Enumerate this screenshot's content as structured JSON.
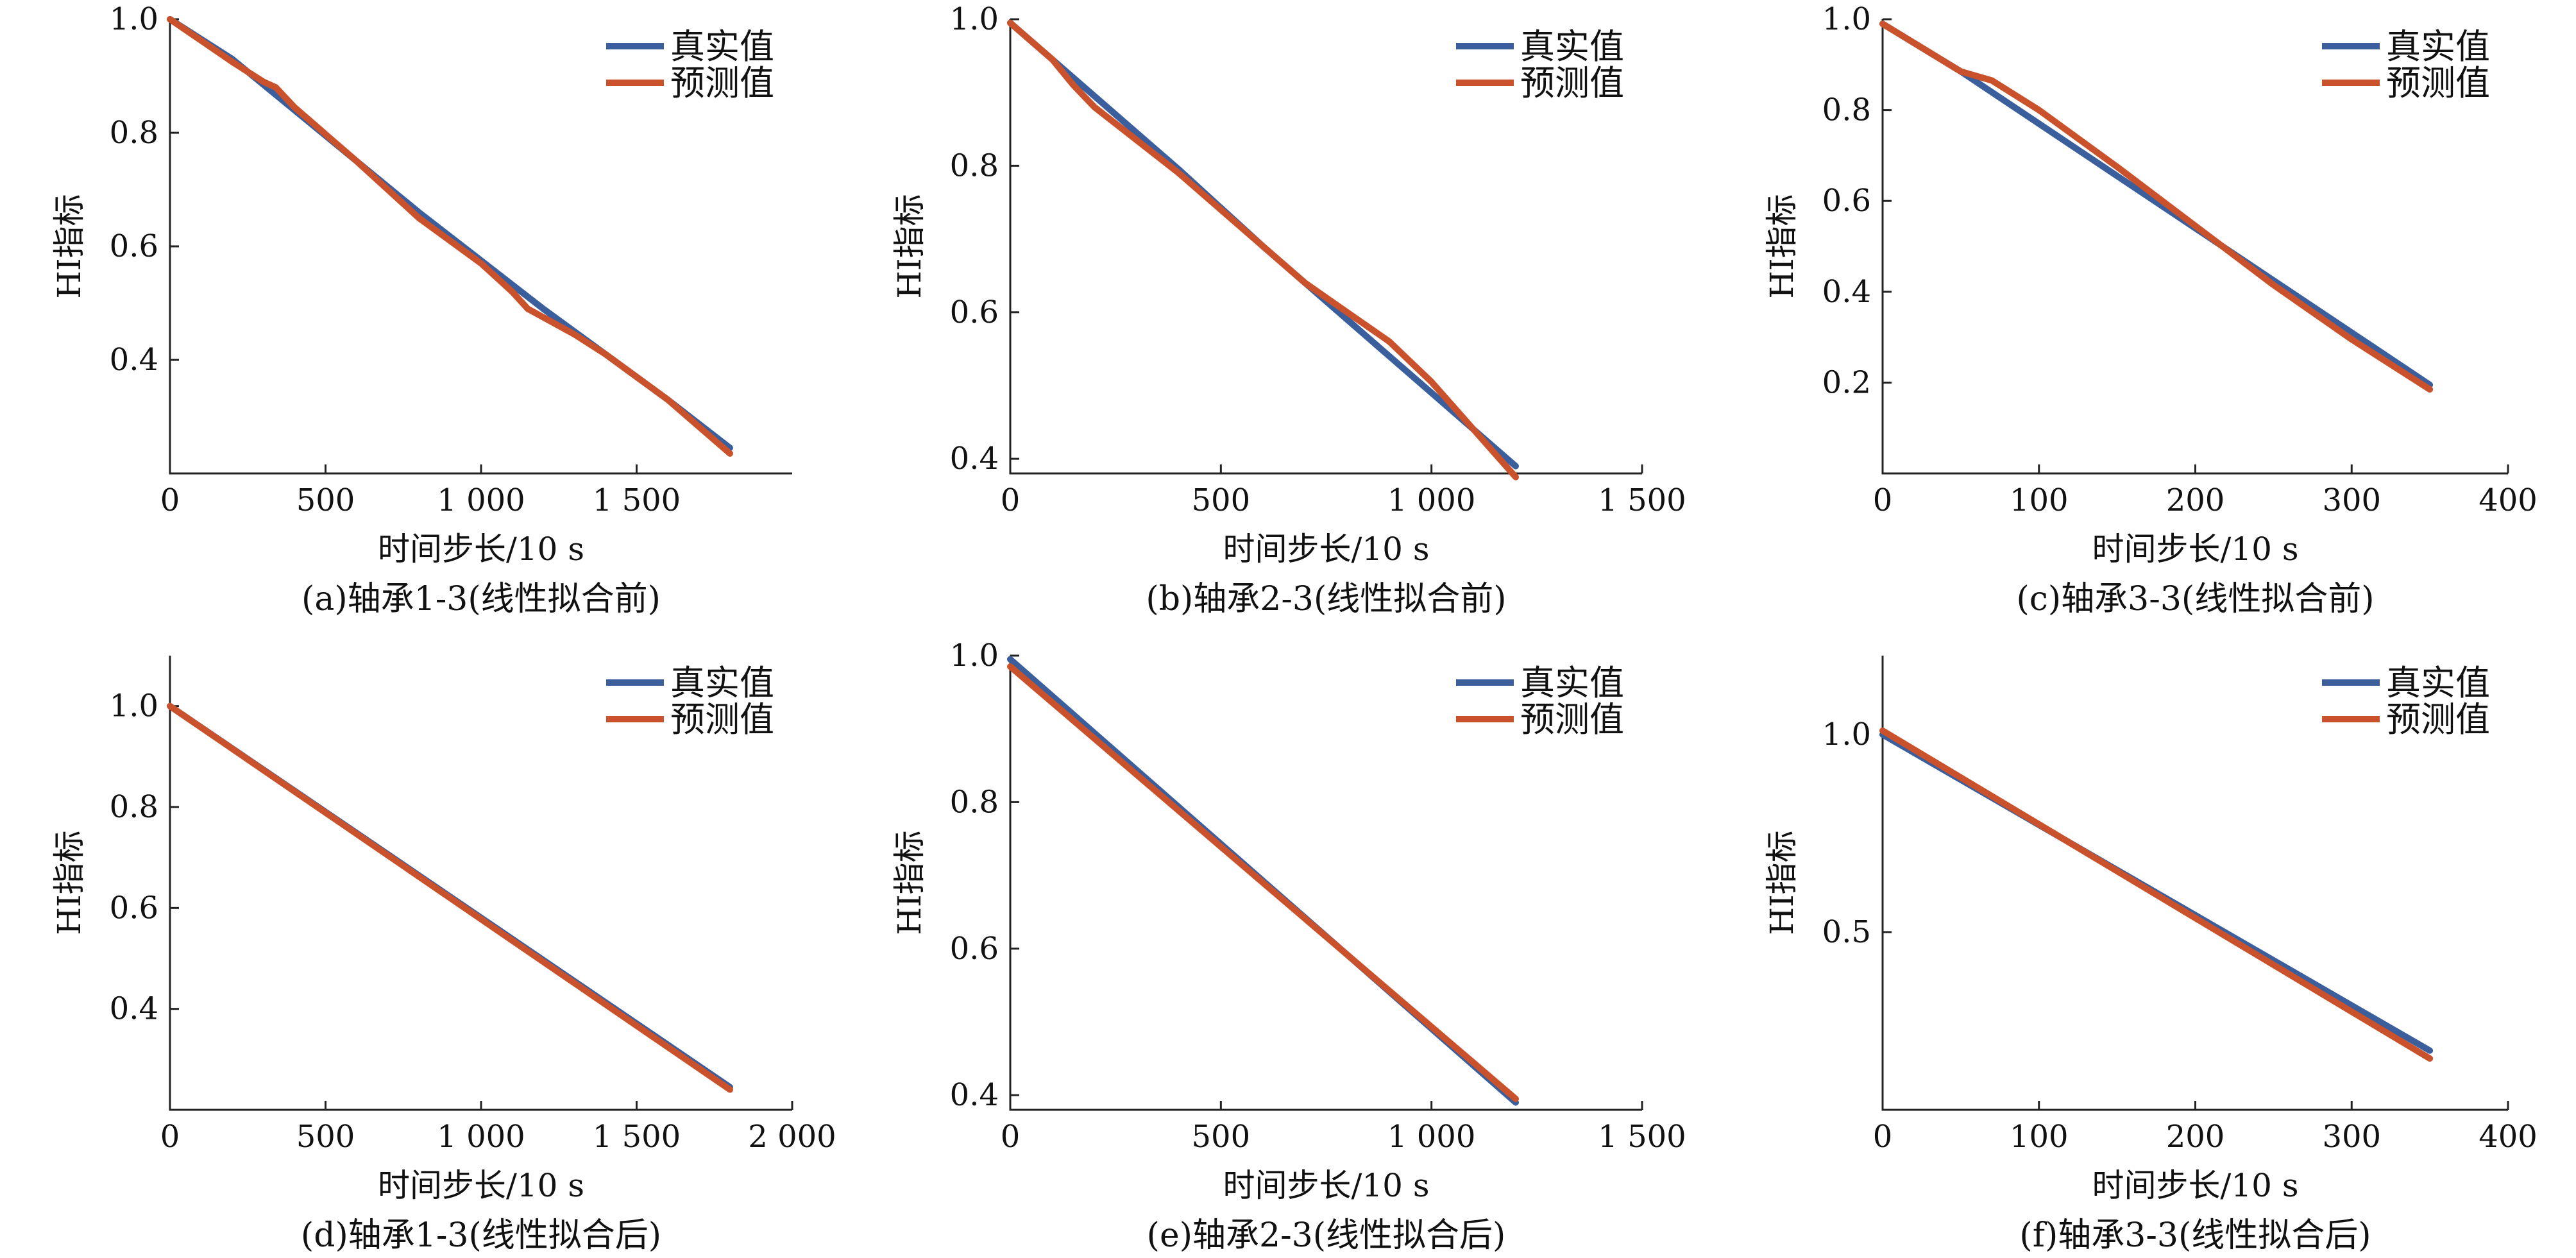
{
  "colors": {
    "true_value": "#3B5E9C",
    "predicted_value": "#C9522C",
    "axis": "#222222"
  },
  "chart_data": [
    {
      "type": "line",
      "caption": "(a)轴承1-3(线性拟合前)",
      "xlabel": "时间步长/10 s",
      "ylabel": "HI指标",
      "xlim": [
        0,
        2000
      ],
      "ylim": [
        0.2,
        1.0
      ],
      "xticks": [
        0,
        500,
        1000,
        1500
      ],
      "xtick_labels": [
        "0",
        "500",
        "1 000",
        "1 500"
      ],
      "yticks": [
        0.4,
        0.6,
        0.8,
        1.0
      ],
      "ytick_labels": [
        "0.4",
        "0.6",
        "0.8",
        "1.0"
      ],
      "legend": {
        "position": "top-right",
        "entries": [
          "真实值",
          "预测值"
        ]
      },
      "series": [
        {
          "name": "真实值",
          "color": "#3B5E9C",
          "x": [
            0,
            200,
            400,
            600,
            800,
            1000,
            1200,
            1400,
            1600,
            1800
          ],
          "y": [
            1.0,
            0.93,
            0.84,
            0.75,
            0.66,
            0.575,
            0.49,
            0.41,
            0.33,
            0.245
          ]
        },
        {
          "name": "预测值",
          "color": "#C9522C",
          "x": [
            0,
            200,
            300,
            340,
            400,
            600,
            800,
            1000,
            1050,
            1100,
            1150,
            1200,
            1300,
            1400,
            1600,
            1800
          ],
          "y": [
            1.0,
            0.925,
            0.89,
            0.88,
            0.845,
            0.75,
            0.65,
            0.57,
            0.545,
            0.52,
            0.49,
            0.475,
            0.445,
            0.41,
            0.33,
            0.235
          ]
        }
      ]
    },
    {
      "type": "line",
      "caption": "(b)轴承2-3(线性拟合前)",
      "xlabel": "时间步长/10 s",
      "ylabel": "HI指标",
      "xlim": [
        0,
        1500
      ],
      "ylim": [
        0.38,
        1.0
      ],
      "xticks": [
        0,
        500,
        1000,
        1500
      ],
      "xtick_labels": [
        "0",
        "500",
        "1 000",
        "1 500"
      ],
      "yticks": [
        0.4,
        0.6,
        0.8,
        1.0
      ],
      "ytick_labels": [
        "0.4",
        "0.6",
        "0.8",
        "1.0"
      ],
      "legend": {
        "position": "top-right",
        "entries": [
          "真实值",
          "预测值"
        ]
      },
      "series": [
        {
          "name": "真实值",
          "color": "#3B5E9C",
          "x": [
            0,
            200,
            400,
            600,
            800,
            1000,
            1200
          ],
          "y": [
            0.995,
            0.895,
            0.795,
            0.69,
            0.59,
            0.49,
            0.39
          ]
        },
        {
          "name": "预测值",
          "color": "#C9522C",
          "x": [
            0,
            100,
            150,
            200,
            400,
            600,
            700,
            800,
            900,
            1000,
            1100,
            1200
          ],
          "y": [
            0.995,
            0.945,
            0.91,
            0.88,
            0.79,
            0.69,
            0.64,
            0.6,
            0.56,
            0.505,
            0.44,
            0.375
          ]
        }
      ]
    },
    {
      "type": "line",
      "caption": "(c)轴承3-3(线性拟合前)",
      "xlabel": "时间步长/10 s",
      "ylabel": "HI指标",
      "xlim": [
        0,
        400
      ],
      "ylim": [
        0.0,
        1.0
      ],
      "xticks": [
        0,
        100,
        200,
        300,
        400
      ],
      "xtick_labels": [
        "0",
        "100",
        "200",
        "300",
        "400"
      ],
      "yticks": [
        0.2,
        0.4,
        0.6,
        0.8,
        1.0
      ],
      "ytick_labels": [
        "0.2",
        "0.4",
        "0.6",
        "0.8",
        "1.0"
      ],
      "legend": {
        "position": "top-right",
        "entries": [
          "真实值",
          "预测值"
        ]
      },
      "series": [
        {
          "name": "真实值",
          "color": "#3B5E9C",
          "x": [
            0,
            50,
            100,
            150,
            200,
            250,
            300,
            350
          ],
          "y": [
            0.99,
            0.885,
            0.77,
            0.655,
            0.54,
            0.425,
            0.31,
            0.195
          ]
        },
        {
          "name": "预测值",
          "color": "#C9522C",
          "x": [
            0,
            50,
            70,
            100,
            150,
            200,
            250,
            300,
            350
          ],
          "y": [
            0.99,
            0.885,
            0.865,
            0.8,
            0.675,
            0.545,
            0.415,
            0.295,
            0.185
          ]
        }
      ]
    },
    {
      "type": "line",
      "caption": "(d)轴承1-3(线性拟合后)",
      "xlabel": "时间步长/10 s",
      "ylabel": "HI指标",
      "xlim": [
        0,
        2000
      ],
      "ylim": [
        0.2,
        1.1
      ],
      "xticks": [
        0,
        500,
        1000,
        1500,
        2000
      ],
      "xtick_labels": [
        "0",
        "500",
        "1 000",
        "1 500",
        "2 000"
      ],
      "yticks": [
        0.4,
        0.6,
        0.8,
        1.0
      ],
      "ytick_labels": [
        "0.4",
        "0.6",
        "0.8",
        "1.0"
      ],
      "legend": {
        "position": "top-right",
        "entries": [
          "真实值",
          "预测值"
        ]
      },
      "series": [
        {
          "name": "真实值",
          "color": "#3B5E9C",
          "x": [
            0,
            1800
          ],
          "y": [
            1.0,
            0.245
          ]
        },
        {
          "name": "预测值",
          "color": "#C9522C",
          "x": [
            0,
            1800
          ],
          "y": [
            1.0,
            0.24
          ]
        }
      ]
    },
    {
      "type": "line",
      "caption": "(e)轴承2-3(线性拟合后)",
      "xlabel": "时间步长/10 s",
      "ylabel": "HI指标",
      "xlim": [
        0,
        1500
      ],
      "ylim": [
        0.38,
        1.0
      ],
      "xticks": [
        0,
        500,
        1000,
        1500
      ],
      "xtick_labels": [
        "0",
        "500",
        "1 000",
        "1 500"
      ],
      "yticks": [
        0.4,
        0.6,
        0.8,
        1.0
      ],
      "ytick_labels": [
        "0.4",
        "0.6",
        "0.8",
        "1.0"
      ],
      "legend": {
        "position": "top-right",
        "entries": [
          "真实值",
          "预测值"
        ]
      },
      "series": [
        {
          "name": "真实值",
          "color": "#3B5E9C",
          "x": [
            0,
            1200
          ],
          "y": [
            0.995,
            0.39
          ]
        },
        {
          "name": "预测值",
          "color": "#C9522C",
          "x": [
            0,
            1200
          ],
          "y": [
            0.985,
            0.395
          ]
        }
      ]
    },
    {
      "type": "line",
      "caption": "(f)轴承3-3(线性拟合后)",
      "xlabel": "时间步长/10 s",
      "ylabel": "HI指标",
      "xlim": [
        0,
        400
      ],
      "ylim": [
        0.05,
        1.2
      ],
      "xticks": [
        0,
        100,
        200,
        300,
        400
      ],
      "xtick_labels": [
        "0",
        "100",
        "200",
        "300",
        "400"
      ],
      "yticks": [
        0.5,
        1.0
      ],
      "ytick_labels": [
        "0.5",
        "1.0"
      ],
      "legend": {
        "position": "top-right",
        "entries": [
          "真实值",
          "预测值"
        ]
      },
      "series": [
        {
          "name": "真实值",
          "color": "#3B5E9C",
          "x": [
            0,
            350
          ],
          "y": [
            1.0,
            0.2
          ]
        },
        {
          "name": "预测值",
          "color": "#C9522C",
          "x": [
            0,
            350
          ],
          "y": [
            1.01,
            0.18
          ]
        }
      ]
    }
  ]
}
